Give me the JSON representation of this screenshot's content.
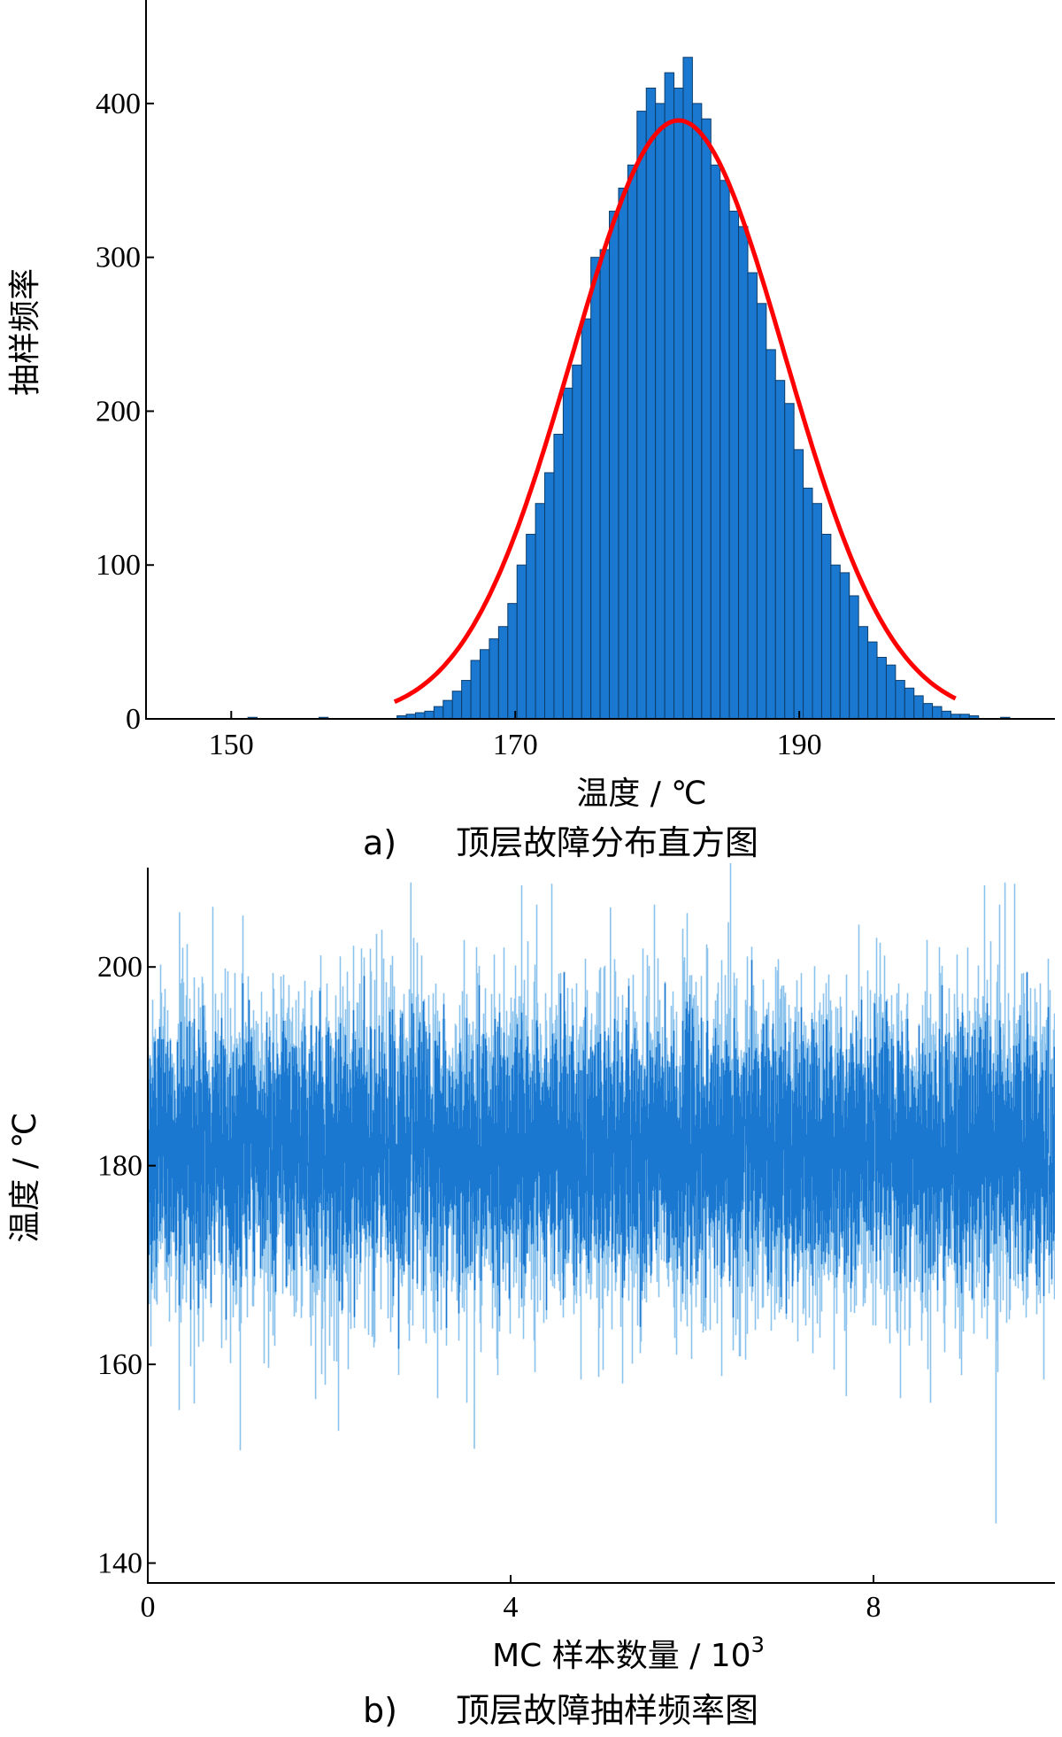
{
  "chart_data": [
    {
      "id": "a",
      "type": "bar",
      "caption_prefix": "a)",
      "caption": "顶层故障分布直方图",
      "xlabel": "温度 / ℃",
      "ylabel": "抽样频率",
      "xlim": [
        144,
        208
      ],
      "ylim": [
        0,
        450
      ],
      "xticks": [
        150,
        170,
        190
      ],
      "yticks": [
        0,
        100,
        200,
        300,
        400
      ],
      "bar_color": "#1a78d0",
      "bar_edge_color": "#0d3d6b",
      "fit_color": "#ff0000",
      "grid": false,
      "bin_width": 0.65,
      "x": [
        151.5,
        156.5,
        162.0,
        162.65,
        163.3,
        163.95,
        164.6,
        165.25,
        165.9,
        166.55,
        167.2,
        167.85,
        168.5,
        169.15,
        169.8,
        170.45,
        171.1,
        171.75,
        172.4,
        173.05,
        173.7,
        174.35,
        175.0,
        175.65,
        176.3,
        176.95,
        177.6,
        178.25,
        178.9,
        179.55,
        180.2,
        180.85,
        181.5,
        182.15,
        182.8,
        183.45,
        184.1,
        184.75,
        185.4,
        186.05,
        186.7,
        187.35,
        188.0,
        188.65,
        189.3,
        189.95,
        190.6,
        191.25,
        191.9,
        192.55,
        193.2,
        193.85,
        194.5,
        195.15,
        195.8,
        196.45,
        197.1,
        197.75,
        198.4,
        199.05,
        199.7,
        200.35,
        201.0,
        201.65,
        202.3,
        204.5
      ],
      "values": [
        1,
        1,
        2,
        3,
        4,
        5,
        8,
        12,
        18,
        25,
        38,
        45,
        52,
        60,
        75,
        100,
        120,
        140,
        160,
        185,
        215,
        230,
        260,
        300,
        305,
        330,
        345,
        360,
        395,
        410,
        400,
        420,
        410,
        430,
        400,
        390,
        360,
        350,
        330,
        320,
        290,
        270,
        240,
        220,
        205,
        175,
        150,
        140,
        120,
        100,
        95,
        80,
        60,
        50,
        40,
        35,
        25,
        20,
        15,
        10,
        8,
        5,
        3,
        3,
        2,
        1
      ],
      "fit": {
        "type": "normal",
        "mean": 181.5,
        "peak": 389,
        "sd": 7.5,
        "x_range": [
          161.5,
          201.0
        ]
      }
    },
    {
      "id": "b",
      "type": "line",
      "caption_prefix": "b)",
      "caption": "顶层故障抽样频率图",
      "xlabel": "MC 样本数量 / 10",
      "xlabel_exp": "3",
      "ylabel": "温度 / ℃",
      "xlim": [
        0,
        10
      ],
      "ylim": [
        138,
        210
      ],
      "xticks": [
        0,
        4,
        8
      ],
      "yticks": [
        140,
        160,
        180,
        200
      ],
      "line_color": "#1a78d0",
      "light_color": "#8cc3ec",
      "grid": false,
      "n_samples": 10000,
      "mean": 181.5,
      "sd": 7.5,
      "extremes": [
        [
          1.85,
          156.5
        ],
        [
          3.6,
          151.5
        ],
        [
          9.35,
          144.0
        ],
        [
          7.7,
          156.8
        ],
        [
          8.6,
          159.5
        ],
        [
          2.9,
          208.5
        ],
        [
          9.45,
          208.5
        ],
        [
          0.35,
          205.5
        ],
        [
          5.1,
          206.0
        ],
        [
          6.4,
          204.5
        ]
      ]
    }
  ]
}
